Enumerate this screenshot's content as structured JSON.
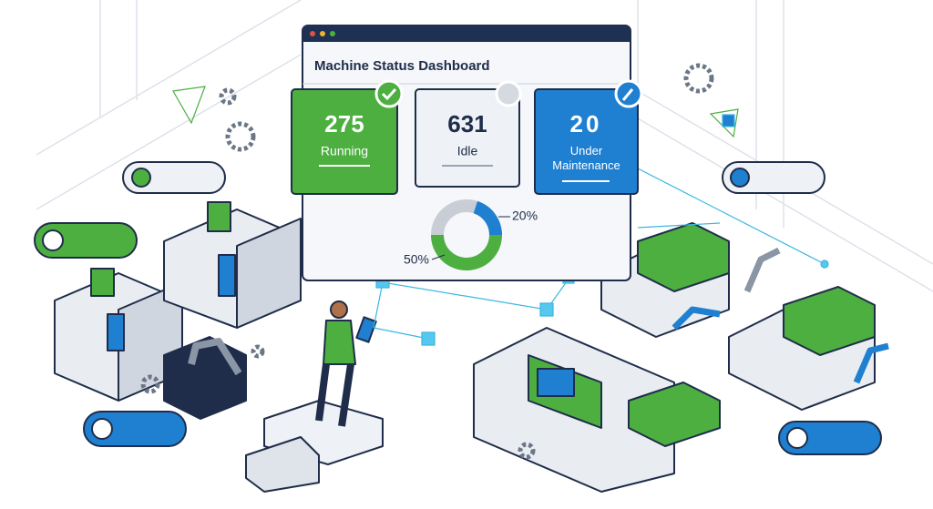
{
  "header": {
    "title": "Machine Status Dashboard"
  },
  "cards": [
    {
      "value": 275,
      "label": "Running"
    },
    {
      "value": 631,
      "label": "Idle"
    },
    {
      "value": 20,
      "label": "Under Maintenance"
    }
  ],
  "donut": {
    "segments": [
      {
        "value": 20,
        "label": "20%",
        "color": "#1f7fd0"
      },
      {
        "value": 50,
        "label": "50%",
        "color": "#4caf3f"
      }
    ]
  }
}
